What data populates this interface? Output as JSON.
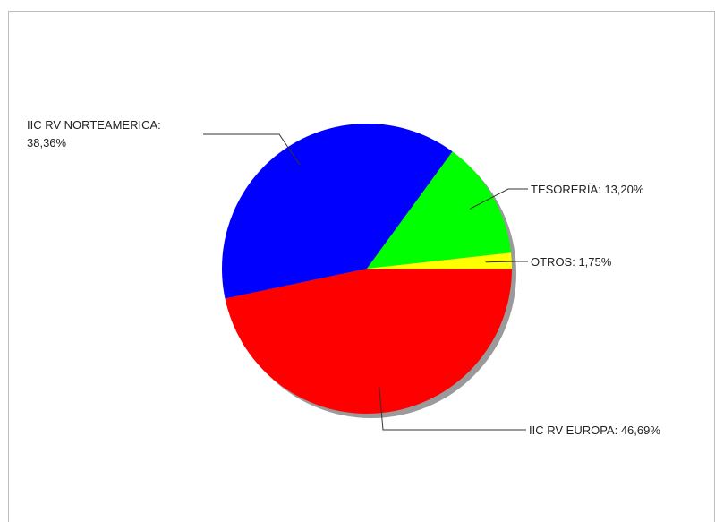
{
  "chart_data": {
    "type": "pie",
    "title": "",
    "categories": [
      "IIC RV EUROPA",
      "OTROS",
      "TESORERÍA",
      "IIC RV NORTEAMERICA"
    ],
    "values": [
      46.69,
      1.75,
      13.2,
      38.36
    ],
    "colors": [
      "#ff0000",
      "#ffff00",
      "#00ff00",
      "#0000ff"
    ],
    "labels": [
      {
        "name": "IIC RV EUROPA",
        "text": "IIC RV EUROPA: 46,69%"
      },
      {
        "name": "OTROS",
        "text": "OTROS: 1,75%"
      },
      {
        "name": "TESORERÍA",
        "text": "TESORERÍA: 13,20%"
      },
      {
        "name": "IIC RV NORTEAMERICA",
        "line1": "IIC RV NORTEAMERICA:",
        "line2": "38,36%"
      }
    ],
    "legend": "none",
    "grid": false
  }
}
